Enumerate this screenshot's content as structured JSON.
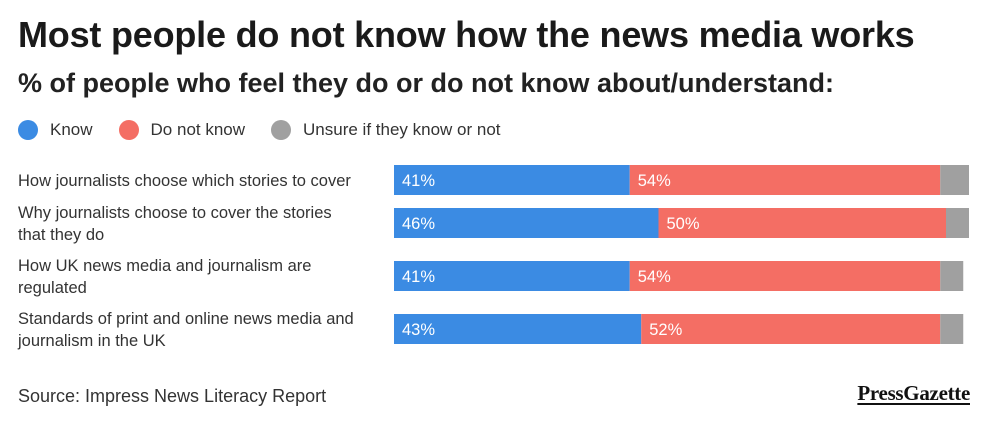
{
  "header": {
    "title": "Most people do not know how the news media works",
    "subtitle": "% of people who feel they do or do not know about/understand:"
  },
  "legend": [
    {
      "label": "Know",
      "color": "#3b8be3"
    },
    {
      "label": "Do not know",
      "color": "#f46e64"
    },
    {
      "label": "Unsure if they know or not",
      "color": "#a0a0a0"
    }
  ],
  "chart_data": {
    "type": "bar",
    "orientation": "horizontal",
    "stacked": true,
    "categories": [
      [
        "How journalists choose which stories to cover"
      ],
      [
        "Why journalists choose to cover the stories",
        "that they do"
      ],
      [
        "How UK news media and journalism are",
        "regulated"
      ],
      [
        "Standards of print and online news media and",
        "journalism in the UK"
      ]
    ],
    "series": [
      {
        "name": "Know",
        "color": "#3b8be3",
        "values": [
          41,
          46,
          41,
          43
        ],
        "labels": [
          "41%",
          "46%",
          "41%",
          "43%"
        ]
      },
      {
        "name": "Do not know",
        "color": "#f46e64",
        "values": [
          54,
          50,
          54,
          52
        ],
        "labels": [
          "54%",
          "50%",
          "54%",
          "52%"
        ]
      },
      {
        "name": "Unsure if they know or not",
        "color": "#a0a0a0",
        "values": [
          5,
          4,
          4,
          4
        ],
        "labels": [
          "",
          "",
          "",
          ""
        ]
      }
    ],
    "xlim": [
      0,
      100
    ]
  },
  "footer": {
    "source": "Source: Impress News Literacy Report",
    "brand": "PressGazette"
  }
}
